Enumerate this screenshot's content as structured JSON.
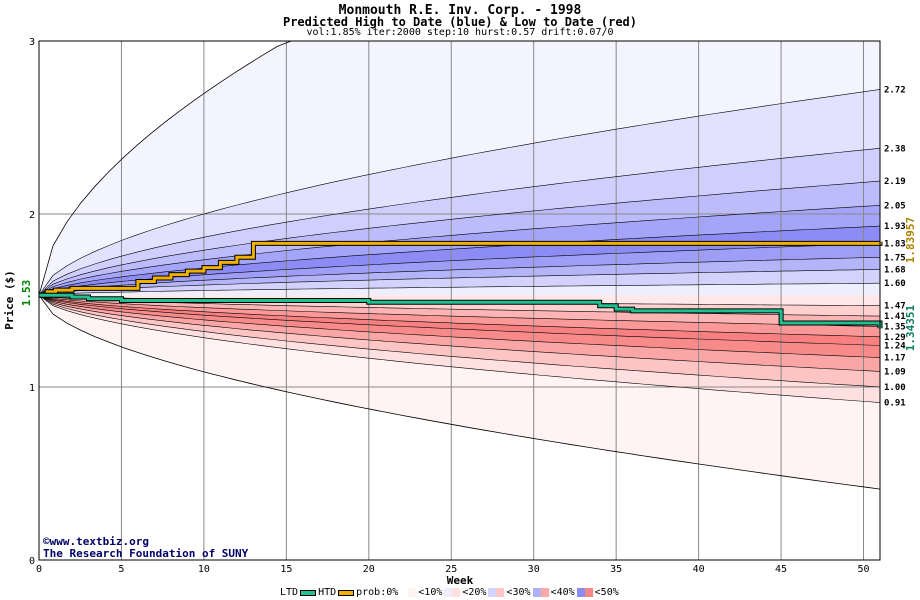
{
  "header": {
    "title": "Monmouth R.E. Inv. Corp. - 1998",
    "subtitle": "Predicted High to Date (blue) &  Low to Date (red)",
    "params": "vol:1.85% iter:2000 step:10 hurst:0.57 drift:0.07/0"
  },
  "credit": {
    "line1": "©www.textbiz.org",
    "line2": "The Research Foundation of SUNY"
  },
  "legend": {
    "ltd": "LTD",
    "htd": "HTD",
    "prob": "prob:0%",
    "b10": "<10%",
    "b20": "<20%",
    "b30": "<30%",
    "b40": "<40%",
    "b50": "<50%"
  },
  "colors": {
    "htd_line": "#f0b000",
    "ltd_line": "#20c090",
    "blue_band": "#6a6af0",
    "red_band": "#f07070"
  },
  "chart_data": {
    "type": "area",
    "xlabel": "Week",
    "ylabel": "Price ($)",
    "xlim": [
      0,
      51
    ],
    "ylim": [
      0,
      3
    ],
    "xticks": [
      0,
      5,
      10,
      15,
      20,
      25,
      30,
      35,
      40,
      45,
      50
    ],
    "yticks": [
      0,
      1,
      2,
      3
    ],
    "grid": true,
    "start_price": 1.53,
    "start_label": "1.53",
    "htd_final_label": "1.83957",
    "ltd_final_label": "1.34351",
    "htd_quantile_finals": [
      2.72,
      2.38,
      2.19,
      2.05,
      1.93,
      1.83,
      1.75,
      1.68,
      1.6
    ],
    "ltd_quantile_finals": [
      1.47,
      1.41,
      1.35,
      1.29,
      1.24,
      1.17,
      1.09,
      1.0,
      0.91
    ],
    "right_labels": [
      "2.72",
      "2.38",
      "2.19",
      "2.05",
      "1.93",
      "1.83",
      "1.75",
      "1.68",
      "1.60",
      "1.47",
      "1.41",
      "1.35",
      "1.29",
      "1.24",
      "1.17",
      "1.09",
      "1.00",
      "0.91"
    ],
    "htd_max_at_w15": 3.0,
    "ltd_min_final": 0.41,
    "htd_series": {
      "name": "HTD",
      "x": [
        0,
        0.5,
        1,
        2,
        3,
        5,
        6,
        7,
        8,
        9,
        10,
        11,
        12,
        13,
        51
      ],
      "y": [
        1.53,
        1.55,
        1.56,
        1.57,
        1.57,
        1.57,
        1.61,
        1.63,
        1.65,
        1.67,
        1.69,
        1.72,
        1.75,
        1.83,
        1.84
      ]
    },
    "ltd_series": {
      "name": "LTD",
      "x": [
        0,
        2,
        3,
        4,
        5,
        20,
        33.5,
        34,
        35,
        36,
        44.5,
        45,
        51
      ],
      "y": [
        1.53,
        1.52,
        1.51,
        1.51,
        1.5,
        1.49,
        1.49,
        1.47,
        1.45,
        1.44,
        1.44,
        1.37,
        1.34
      ]
    }
  }
}
